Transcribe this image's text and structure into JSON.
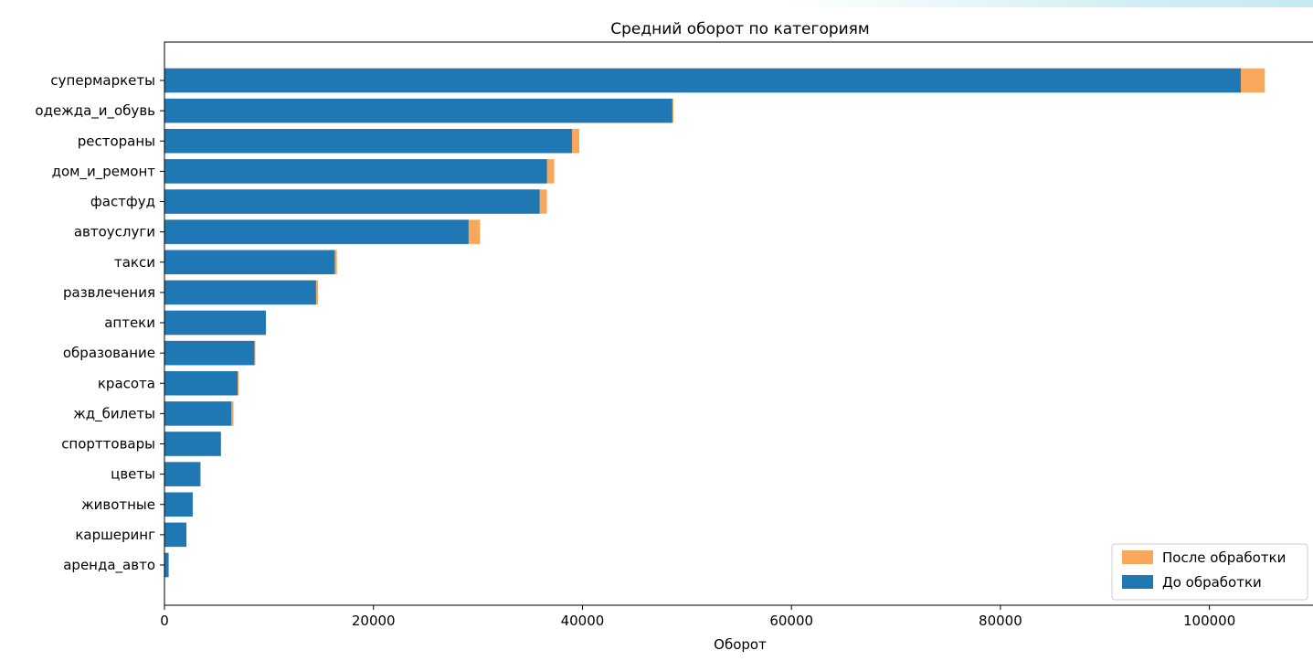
{
  "chart_data": {
    "type": "bar",
    "orientation": "horizontal",
    "stacked": false,
    "title": "Средний оборот по категориям",
    "xlabel": "Оборот",
    "ylabel": "",
    "xlim": [
      0,
      110000
    ],
    "xticks": [
      0,
      20000,
      40000,
      60000,
      80000,
      100000
    ],
    "grid": false,
    "legend_position": "bottom-right",
    "categories": [
      "супермаркеты",
      "одежда_и_обувь",
      "рестораны",
      "дом_и_ремонт",
      "фастфуд",
      "автоуслуги",
      "такси",
      "развлечения",
      "аптеки",
      "образование",
      "красота",
      "жд_билеты",
      "спорттовары",
      "цветы",
      "животные",
      "каршеринг",
      "аренда_авто"
    ],
    "series": [
      {
        "name": "После обработки",
        "color": "#f9a75a",
        "values": [
          105300,
          48700,
          39700,
          37300,
          36600,
          30200,
          16500,
          14700,
          9700,
          8700,
          7100,
          6600,
          5400,
          3500,
          2700,
          2100,
          400
        ]
      },
      {
        "name": "До обработки",
        "color": "#1f77b4",
        "values": [
          103000,
          48600,
          39000,
          36600,
          35900,
          29100,
          16300,
          14500,
          9700,
          8600,
          7000,
          6400,
          5400,
          3400,
          2700,
          2100,
          400
        ]
      }
    ]
  }
}
